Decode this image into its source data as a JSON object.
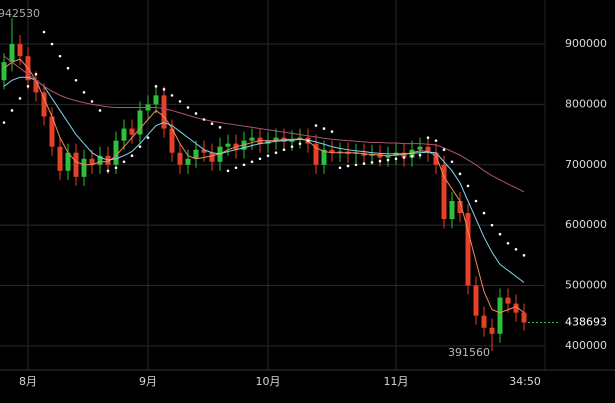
{
  "chart_data": {
    "type": "candlestick",
    "countdown": "34:50",
    "up_color": "#2fbf3f",
    "down_color": "#e5402c",
    "ylim": [
      360000,
      973000
    ],
    "yticks": [
      400000,
      500000,
      600000,
      700000,
      800000,
      900000
    ],
    "xticks": [
      {
        "value": 3,
        "label": "8月"
      },
      {
        "value": 18,
        "label": "9月"
      },
      {
        "value": 33,
        "label": "10月"
      },
      {
        "value": 49,
        "label": "11月"
      }
    ],
    "grid": true,
    "candles": {
      "open": [
        840000,
        870000,
        900000,
        880000,
        840000,
        820000,
        780000,
        730000,
        690000,
        720000,
        680000,
        710000,
        700000,
        715000,
        700000,
        740000,
        760000,
        750000,
        790000,
        800000,
        815000,
        760000,
        720000,
        700000,
        710000,
        725000,
        720000,
        705000,
        730000,
        735000,
        725000,
        740000,
        745000,
        735000,
        740000,
        745000,
        738000,
        742000,
        745000,
        735000,
        700000,
        725000,
        720000,
        722000,
        718000,
        720000,
        715000,
        718000,
        712000,
        715000,
        720000,
        712000,
        725000,
        730000,
        720000,
        700000,
        610000,
        640000,
        620000,
        500000,
        450000,
        430000,
        420000,
        480000,
        470000,
        455000
      ],
      "high": [
        885000,
        942530,
        915000,
        895000,
        855000,
        835000,
        795000,
        745000,
        735000,
        735000,
        725000,
        725000,
        730000,
        730000,
        755000,
        775000,
        775000,
        805000,
        815000,
        830000,
        830000,
        775000,
        735000,
        725000,
        740000,
        740000,
        735000,
        745000,
        750000,
        750000,
        755000,
        760000,
        760000,
        755000,
        760000,
        760000,
        757000,
        760000,
        760000,
        750000,
        740000,
        740000,
        737000,
        737000,
        735000,
        735000,
        733000,
        733000,
        730000,
        735000,
        735000,
        740000,
        745000,
        745000,
        735000,
        715000,
        655000,
        655000,
        635000,
        515000,
        465000,
        445000,
        495000,
        495000,
        485000,
        470000
      ],
      "low": [
        825000,
        855000,
        865000,
        825000,
        805000,
        765000,
        715000,
        675000,
        675000,
        665000,
        665000,
        685000,
        685000,
        685000,
        685000,
        725000,
        735000,
        735000,
        775000,
        785000,
        745000,
        705000,
        685000,
        685000,
        695000,
        705000,
        690000,
        690000,
        715000,
        710000,
        710000,
        725000,
        720000,
        720000,
        725000,
        723000,
        723000,
        727000,
        720000,
        685000,
        685000,
        705000,
        705000,
        703000,
        703000,
        700000,
        700000,
        697000,
        697000,
        700000,
        697000,
        697000,
        710000,
        705000,
        685000,
        595000,
        595000,
        605000,
        485000,
        435000,
        415000,
        391560,
        405000,
        455000,
        440000,
        425000
      ],
      "close": [
        870000,
        900000,
        880000,
        840000,
        820000,
        780000,
        730000,
        690000,
        720000,
        680000,
        710000,
        700000,
        715000,
        700000,
        740000,
        760000,
        750000,
        790000,
        800000,
        815000,
        760000,
        720000,
        700000,
        710000,
        725000,
        720000,
        705000,
        730000,
        735000,
        725000,
        740000,
        745000,
        735000,
        740000,
        745000,
        738000,
        742000,
        745000,
        735000,
        700000,
        725000,
        720000,
        722000,
        718000,
        720000,
        715000,
        718000,
        712000,
        715000,
        720000,
        712000,
        725000,
        730000,
        720000,
        700000,
        610000,
        640000,
        620000,
        500000,
        450000,
        430000,
        420000,
        480000,
        470000,
        455000,
        438693
      ]
    },
    "series": [
      {
        "color": "#f08a5d",
        "values": [
          860000,
          870000,
          875000,
          860000,
          840000,
          810000,
          780000,
          745000,
          720000,
          705000,
          700000,
          700000,
          705000,
          705000,
          715000,
          730000,
          745000,
          760000,
          775000,
          790000,
          780000,
          760000,
          735000,
          715000,
          710000,
          712000,
          715000,
          718000,
          725000,
          730000,
          733000,
          737000,
          740000,
          740000,
          740000,
          742000,
          742000,
          743000,
          740000,
          728000,
          722000,
          720000,
          720000,
          720000,
          720000,
          718000,
          717000,
          716000,
          715000,
          716000,
          717000,
          720000,
          723000,
          722000,
          715000,
          680000,
          660000,
          640000,
          590000,
          540000,
          490000,
          460000,
          455000,
          460000,
          465000,
          455000
        ]
      },
      {
        "color": "#7fd8f0",
        "values": [
          830000,
          840000,
          845000,
          845000,
          840000,
          830000,
          810000,
          790000,
          770000,
          750000,
          735000,
          720000,
          712000,
          708000,
          710000,
          715000,
          722000,
          735000,
          750000,
          765000,
          770000,
          765000,
          755000,
          745000,
          735000,
          725000,
          720000,
          718000,
          722000,
          725000,
          728000,
          732000,
          735000,
          737000,
          739000,
          740000,
          741000,
          742000,
          741000,
          738000,
          734000,
          730000,
          727000,
          725000,
          723000,
          722000,
          720000,
          719000,
          718000,
          718000,
          718000,
          719000,
          720000,
          721000,
          720000,
          705000,
          690000,
          670000,
          640000,
          610000,
          580000,
          555000,
          535000,
          525000,
          515000,
          505000
        ]
      },
      {
        "color": "#b0546f",
        "values": [
          880000,
          870000,
          860000,
          850000,
          840000,
          830000,
          822000,
          815000,
          810000,
          806000,
          803000,
          800000,
          798000,
          796000,
          795000,
          795000,
          795000,
          795000,
          795000,
          795000,
          793000,
          790000,
          786000,
          782000,
          778000,
          775000,
          772000,
          770000,
          768000,
          766000,
          764000,
          762000,
          760000,
          758000,
          756000,
          754000,
          752000,
          750000,
          748000,
          746000,
          744000,
          742000,
          741000,
          740000,
          739000,
          738000,
          737000,
          737000,
          736000,
          736000,
          735000,
          735000,
          735000,
          734000,
          733000,
          728000,
          722000,
          716000,
          708000,
          700000,
          690000,
          682000,
          675000,
          668000,
          662000,
          655000
        ]
      }
    ],
    "sar": {
      "color": "#ffffff",
      "values": [
        770000,
        790000,
        810000,
        830000,
        850000,
        920000,
        900000,
        880000,
        860000,
        840000,
        820000,
        805000,
        790000,
        690000,
        695000,
        705000,
        715000,
        730000,
        745000,
        830000,
        825000,
        815000,
        805000,
        795000,
        785000,
        775000,
        768000,
        762000,
        690000,
        695000,
        700000,
        705000,
        710000,
        715000,
        720000,
        725000,
        730000,
        735000,
        740000,
        765000,
        760000,
        755000,
        695000,
        698000,
        700000,
        702000,
        704000,
        706000,
        708000,
        710000,
        712000,
        714000,
        716000,
        745000,
        740000,
        725000,
        705000,
        685000,
        665000,
        640000,
        620000,
        600000,
        585000,
        570000,
        560000,
        550000
      ]
    }
  }
}
